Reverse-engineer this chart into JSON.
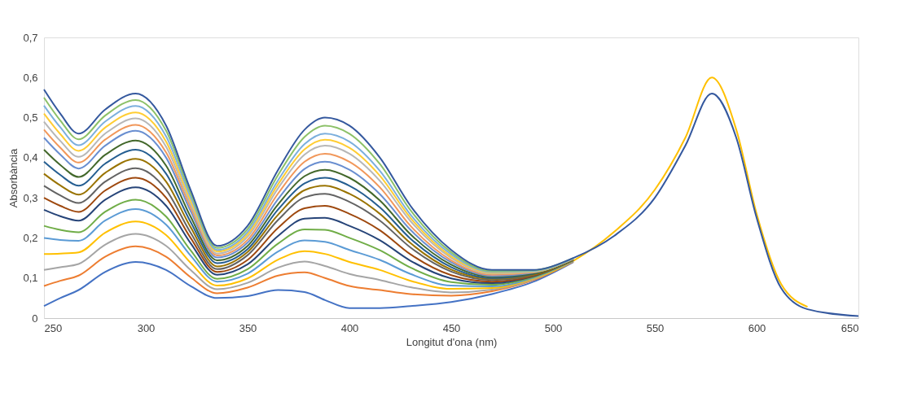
{
  "chart_data": {
    "type": "line",
    "xlabel": "Longitut d'ona (nm)",
    "ylabel": "Absorbància",
    "x": [
      250,
      258,
      267,
      280,
      295,
      310,
      322,
      335,
      350,
      365,
      378,
      388,
      400,
      415,
      430,
      450,
      470,
      490,
      510,
      530,
      550,
      565,
      578,
      590,
      600,
      612,
      625,
      650
    ],
    "xlim": [
      250,
      650
    ],
    "xticks": [
      250,
      300,
      350,
      400,
      450,
      500,
      550,
      600,
      650
    ],
    "ylim": [
      0,
      0.7
    ],
    "yticks": [
      0,
      {
        "value": 0.1,
        "label": "0,1"
      },
      {
        "value": 0.2,
        "label": "0,2"
      },
      {
        "value": 0.3,
        "label": "0,3"
      },
      {
        "value": 0.4,
        "label": "0,4"
      },
      {
        "value": 0.5,
        "label": "0,5"
      },
      {
        "value": 0.6,
        "label": "0,6"
      },
      {
        "value": 0.7,
        "label": "0,7"
      }
    ],
    "grid": false,
    "legend": false,
    "marker": "none",
    "line_style": "solid",
    "series": [
      {
        "color": "#4472c4",
        "values": [
          0.03,
          0.05,
          0.07,
          0.115,
          0.14,
          0.12,
          0.08,
          0.05,
          0.055,
          0.07,
          0.065,
          0.045,
          0.025,
          0.025,
          0.03,
          0.04,
          0.06,
          0.09,
          0.14,
          null,
          null,
          null,
          null,
          null,
          null,
          null,
          null,
          null
        ]
      },
      {
        "color": "#ed7d31",
        "values": [
          0.08,
          0.093,
          0.106,
          0.153,
          0.179,
          0.153,
          0.102,
          0.062,
          0.076,
          0.106,
          0.114,
          0.1,
          0.08,
          0.07,
          0.06,
          0.056,
          0.067,
          0.094,
          0.141,
          null,
          null,
          null,
          null,
          null,
          null,
          null,
          null,
          null
        ]
      },
      {
        "color": "#a5a5a5",
        "values": [
          0.12,
          0.127,
          0.135,
          0.183,
          0.21,
          0.18,
          0.12,
          0.072,
          0.088,
          0.126,
          0.141,
          0.13,
          0.11,
          0.095,
          0.077,
          0.064,
          0.071,
          0.096,
          0.142,
          null,
          null,
          null,
          null,
          null,
          null,
          null,
          null,
          null
        ]
      },
      {
        "color": "#ffc000",
        "values": [
          0.16,
          0.161,
          0.164,
          0.213,
          0.241,
          0.207,
          0.138,
          0.081,
          0.099,
          0.146,
          0.167,
          0.16,
          0.14,
          0.12,
          0.093,
          0.073,
          0.075,
          0.098,
          0.143,
          0.215,
          0.32,
          0.45,
          0.6,
          0.47,
          0.26,
          0.085,
          0.028,
          null
        ]
      },
      {
        "color": "#5b9bd5",
        "values": [
          0.2,
          0.195,
          0.193,
          0.243,
          0.272,
          0.233,
          0.156,
          0.091,
          0.111,
          0.166,
          0.194,
          0.19,
          0.17,
          0.145,
          0.11,
          0.081,
          0.079,
          0.1,
          0.143,
          null,
          null,
          null,
          null,
          null,
          null,
          null,
          null,
          null
        ]
      },
      {
        "color": "#70ad47",
        "values": [
          0.23,
          0.22,
          0.214,
          0.265,
          0.295,
          0.253,
          0.169,
          0.098,
          0.122,
          0.186,
          0.221,
          0.22,
          0.2,
          0.169,
          0.126,
          0.09,
          0.083,
          0.102,
          0.144,
          null,
          null,
          null,
          null,
          null,
          null,
          null,
          null,
          null
        ]
      },
      {
        "color": "#264478",
        "values": [
          0.27,
          0.254,
          0.243,
          0.295,
          0.326,
          0.28,
          0.187,
          0.108,
          0.134,
          0.205,
          0.248,
          0.25,
          0.23,
          0.194,
          0.143,
          0.099,
          0.087,
          0.104,
          0.145,
          null,
          null,
          null,
          null,
          null,
          null,
          null,
          null,
          null
        ]
      },
      {
        "color": "#9e480e",
        "values": [
          0.3,
          0.28,
          0.265,
          0.318,
          0.35,
          0.3,
          0.2,
          0.115,
          0.145,
          0.225,
          0.274,
          0.28,
          0.26,
          0.219,
          0.159,
          0.107,
          0.091,
          0.105,
          0.145,
          null,
          null,
          null,
          null,
          null,
          null,
          null,
          null,
          null
        ]
      },
      {
        "color": "#636363",
        "values": [
          0.33,
          0.306,
          0.287,
          0.34,
          0.374,
          0.32,
          0.213,
          0.122,
          0.157,
          0.245,
          0.301,
          0.31,
          0.29,
          0.243,
          0.176,
          0.116,
          0.095,
          0.107,
          0.146,
          null,
          null,
          null,
          null,
          null,
          null,
          null,
          null,
          null
        ]
      },
      {
        "color": "#997300",
        "values": [
          0.36,
          0.331,
          0.308,
          0.362,
          0.397,
          0.34,
          0.227,
          0.129,
          0.165,
          0.258,
          0.319,
          0.33,
          0.31,
          0.26,
          0.187,
          0.121,
          0.098,
          0.108,
          0.146,
          null,
          null,
          null,
          null,
          null,
          null,
          null,
          null,
          null
        ]
      },
      {
        "color": "#255e91",
        "values": [
          0.39,
          0.357,
          0.33,
          0.385,
          0.42,
          0.36,
          0.24,
          0.137,
          0.172,
          0.271,
          0.336,
          0.35,
          0.33,
          0.276,
          0.198,
          0.127,
          0.1,
          0.11,
          0.147,
          null,
          null,
          null,
          null,
          null,
          null,
          null,
          null,
          null
        ]
      },
      {
        "color": "#43682b",
        "values": [
          0.42,
          0.382,
          0.352,
          0.407,
          0.443,
          0.38,
          0.253,
          0.144,
          0.18,
          0.284,
          0.354,
          0.37,
          0.35,
          0.293,
          0.209,
          0.133,
          0.103,
          0.111,
          0.147,
          null,
          null,
          null,
          null,
          null,
          null,
          null,
          null,
          null
        ]
      },
      {
        "color": "#698ed0",
        "values": [
          0.45,
          0.408,
          0.373,
          0.43,
          0.467,
          0.4,
          0.267,
          0.151,
          0.188,
          0.297,
          0.372,
          0.39,
          0.37,
          0.309,
          0.22,
          0.139,
          0.105,
          0.113,
          0.148,
          null,
          null,
          null,
          null,
          null,
          null,
          null,
          null,
          null
        ]
      },
      {
        "color": "#f1975a",
        "values": [
          0.47,
          0.425,
          0.388,
          0.445,
          0.482,
          0.413,
          0.276,
          0.156,
          0.195,
          0.311,
          0.39,
          0.41,
          0.39,
          0.326,
          0.23,
          0.144,
          0.108,
          0.114,
          0.148,
          null,
          null,
          null,
          null,
          null,
          null,
          null,
          null,
          null
        ]
      },
      {
        "color": "#b7b7b7",
        "values": [
          0.49,
          0.442,
          0.402,
          0.46,
          0.498,
          0.427,
          0.284,
          0.161,
          0.203,
          0.324,
          0.408,
          0.43,
          0.41,
          0.342,
          0.242,
          0.15,
          0.111,
          0.115,
          0.148,
          null,
          null,
          null,
          null,
          null,
          null,
          null,
          null,
          null
        ]
      },
      {
        "color": "#ffcd33",
        "values": [
          0.51,
          0.459,
          0.417,
          0.475,
          0.513,
          0.44,
          0.293,
          0.166,
          0.209,
          0.334,
          0.421,
          0.445,
          0.425,
          0.355,
          0.25,
          0.154,
          0.113,
          0.116,
          0.149,
          null,
          null,
          null,
          null,
          null,
          null,
          null,
          null,
          null
        ]
      },
      {
        "color": "#7cafdd",
        "values": [
          0.53,
          0.476,
          0.431,
          0.49,
          0.529,
          0.453,
          0.302,
          0.17,
          0.215,
          0.344,
          0.434,
          0.46,
          0.44,
          0.367,
          0.258,
          0.159,
          0.115,
          0.117,
          0.149,
          null,
          null,
          null,
          null,
          null,
          null,
          null,
          null,
          null
        ]
      },
      {
        "color": "#8cc168",
        "values": [
          0.55,
          0.493,
          0.446,
          0.505,
          0.544,
          0.467,
          0.311,
          0.175,
          0.222,
          0.357,
          0.452,
          0.48,
          0.46,
          0.384,
          0.269,
          0.164,
          0.117,
          0.119,
          0.15,
          null,
          null,
          null,
          null,
          null,
          null,
          null,
          null,
          null
        ]
      },
      {
        "color": "#34589e",
        "values": [
          0.57,
          0.51,
          0.46,
          0.52,
          0.56,
          0.48,
          0.32,
          0.18,
          0.23,
          0.37,
          0.47,
          0.5,
          0.48,
          0.4,
          0.28,
          0.17,
          0.12,
          0.12,
          0.15,
          0.205,
          0.3,
          0.43,
          0.56,
          0.45,
          0.25,
          0.075,
          0.022,
          0.005
        ]
      }
    ]
  }
}
